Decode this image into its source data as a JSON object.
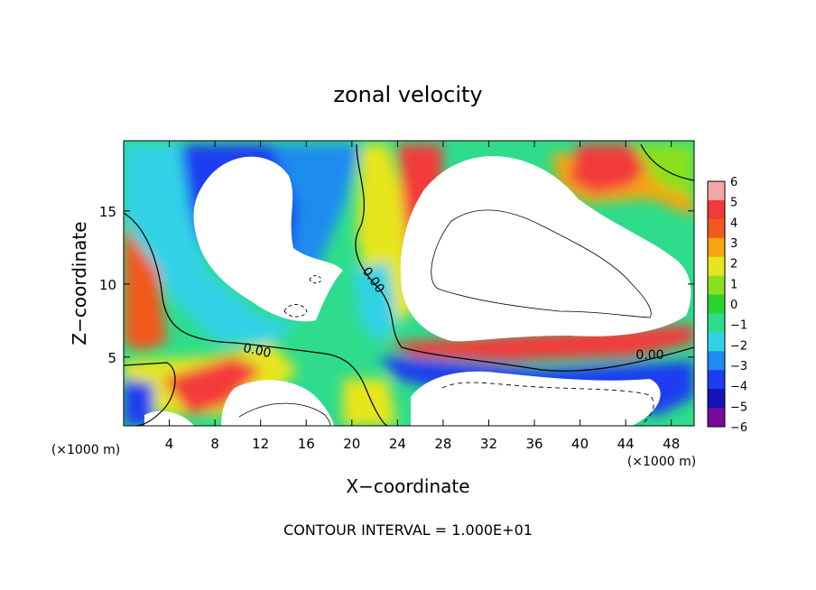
{
  "chart_data": {
    "type": "heatmap",
    "title": "zonal velocity",
    "xlabel": "X−coordinate",
    "ylabel": "Z−coordinate",
    "x_unit_left": "(×1000 m)",
    "x_unit_right": "(×1000 m)",
    "xlim": [
      0,
      50
    ],
    "ylim": [
      0.3,
      19.8
    ],
    "x_ticks": [
      4,
      8,
      12,
      16,
      20,
      24,
      28,
      32,
      36,
      40,
      44,
      48
    ],
    "x_tick_labels": [
      "4",
      "8",
      "12",
      "16",
      "20",
      "24",
      "28",
      "32",
      "36",
      "40",
      "44",
      "48"
    ],
    "y_ticks": [
      5,
      10,
      15
    ],
    "y_tick_labels": [
      "5",
      "10",
      "15"
    ],
    "colorbar": {
      "levels": [
        6,
        5,
        4,
        3,
        2,
        1,
        0,
        -1,
        -2,
        -3,
        -4,
        -5,
        -6
      ],
      "labels": [
        "6",
        "5",
        "4",
        "3",
        "2",
        "1",
        "0",
        "−1",
        "−2",
        "−3",
        "−4",
        "−5",
        "−6"
      ],
      "colors": [
        "#f4a6a6",
        "#f33a3a",
        "#f05a1e",
        "#f5a60c",
        "#e6e61e",
        "#8ae01e",
        "#2ed22e",
        "#2edc8c",
        "#32d2e6",
        "#1e8cf0",
        "#1e3cf0",
        "#1414b4",
        "#780aa0"
      ]
    },
    "contour_labels": [
      "0.00",
      "0.00",
      "0.00"
    ],
    "footer": "CONTOUR INTERVAL = 1.000E+01"
  }
}
